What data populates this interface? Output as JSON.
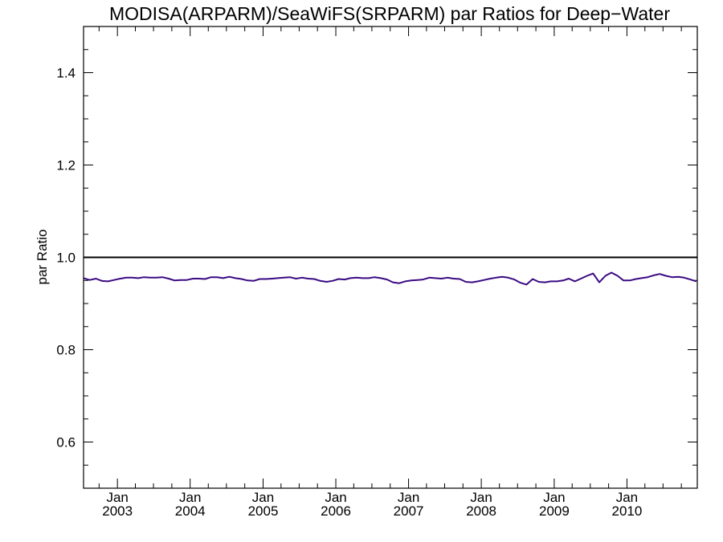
{
  "chart_data": {
    "type": "line",
    "title": "MODISA(ARPARM)/SeaWiFS(SRPARM)  par Ratios for Deep−Water",
    "xlabel": "",
    "ylabel": "par Ratio",
    "xlim": [
      "2002-07-15",
      "2010-12-20"
    ],
    "ylim": [
      0.5,
      1.5
    ],
    "grid": false,
    "legend": "none",
    "x_ticks": [
      {
        "month": "Jan",
        "year": "2003",
        "date": "2003-01-01"
      },
      {
        "month": "Jan",
        "year": "2004",
        "date": "2004-01-01"
      },
      {
        "month": "Jan",
        "year": "2005",
        "date": "2005-01-01"
      },
      {
        "month": "Jan",
        "year": "2006",
        "date": "2006-01-01"
      },
      {
        "month": "Jan",
        "year": "2007",
        "date": "2007-01-01"
      },
      {
        "month": "Jan",
        "year": "2008",
        "date": "2008-01-01"
      },
      {
        "month": "Jan",
        "year": "2009",
        "date": "2009-01-01"
      },
      {
        "month": "Jan",
        "year": "2010",
        "date": "2010-01-01"
      }
    ],
    "y_ticks": [
      "0.6",
      "0.8",
      "1.0",
      "1.2",
      "1.4"
    ],
    "y_tick_values": [
      0.6,
      0.8,
      1.0,
      1.2,
      1.4
    ],
    "reference_line": {
      "y": 1.0,
      "color": "#000000"
    },
    "series": [
      {
        "color": "#3a0a82",
        "x": [
          "2002-07-15",
          "2002-08-15",
          "2002-09-15",
          "2002-10-15",
          "2002-11-15",
          "2002-12-15",
          "2003-01-15",
          "2003-02-15",
          "2003-03-15",
          "2003-04-15",
          "2003-05-15",
          "2003-06-15",
          "2003-07-15",
          "2003-08-15",
          "2003-09-15",
          "2003-10-15",
          "2003-11-15",
          "2003-12-15",
          "2004-01-15",
          "2004-02-15",
          "2004-03-15",
          "2004-04-15",
          "2004-05-15",
          "2004-06-15",
          "2004-07-15",
          "2004-08-15",
          "2004-09-15",
          "2004-10-15",
          "2004-11-15",
          "2004-12-15",
          "2005-01-15",
          "2005-02-15",
          "2005-03-15",
          "2005-04-15",
          "2005-05-15",
          "2005-06-15",
          "2005-07-15",
          "2005-08-15",
          "2005-09-15",
          "2005-10-15",
          "2005-11-15",
          "2005-12-15",
          "2006-01-15",
          "2006-02-15",
          "2006-03-15",
          "2006-04-15",
          "2006-05-15",
          "2006-06-15",
          "2006-07-15",
          "2006-08-15",
          "2006-09-15",
          "2006-10-15",
          "2006-11-15",
          "2006-12-15",
          "2007-01-15",
          "2007-02-15",
          "2007-03-15",
          "2007-04-15",
          "2007-05-15",
          "2007-06-15",
          "2007-07-15",
          "2007-08-15",
          "2007-09-15",
          "2007-10-15",
          "2007-11-15",
          "2007-12-15",
          "2008-01-15",
          "2008-02-15",
          "2008-03-15",
          "2008-04-15",
          "2008-05-15",
          "2008-06-15",
          "2008-07-15",
          "2008-08-15",
          "2008-09-15",
          "2008-10-15",
          "2008-11-15",
          "2008-12-15",
          "2009-01-15",
          "2009-02-15",
          "2009-03-15",
          "2009-04-15",
          "2009-05-15",
          "2009-06-15",
          "2009-07-15",
          "2009-08-15",
          "2009-09-15",
          "2009-10-15",
          "2009-11-15",
          "2009-12-15",
          "2010-01-15",
          "2010-02-15",
          "2010-03-15",
          "2010-04-15",
          "2010-05-15",
          "2010-06-15",
          "2010-07-15",
          "2010-08-15",
          "2010-09-15",
          "2010-10-15",
          "2010-11-15",
          "2010-12-15"
        ],
        "y": [
          0.955,
          0.951,
          0.954,
          0.949,
          0.948,
          0.951,
          0.954,
          0.956,
          0.956,
          0.955,
          0.957,
          0.956,
          0.956,
          0.957,
          0.954,
          0.95,
          0.951,
          0.951,
          0.954,
          0.954,
          0.953,
          0.957,
          0.957,
          0.955,
          0.958,
          0.955,
          0.953,
          0.95,
          0.949,
          0.953,
          0.953,
          0.954,
          0.955,
          0.956,
          0.957,
          0.954,
          0.956,
          0.954,
          0.953,
          0.949,
          0.947,
          0.949,
          0.953,
          0.952,
          0.955,
          0.956,
          0.955,
          0.955,
          0.957,
          0.955,
          0.952,
          0.946,
          0.944,
          0.948,
          0.95,
          0.951,
          0.952,
          0.956,
          0.955,
          0.954,
          0.956,
          0.954,
          0.953,
          0.947,
          0.946,
          0.948,
          0.951,
          0.954,
          0.956,
          0.958,
          0.956,
          0.952,
          0.945,
          0.941,
          0.953,
          0.947,
          0.946,
          0.948,
          0.948,
          0.95,
          0.954,
          0.948,
          0.954,
          0.96,
          0.965,
          0.946,
          0.96,
          0.967,
          0.96,
          0.95,
          0.95,
          0.953,
          0.955,
          0.957,
          0.961,
          0.964,
          0.96,
          0.957,
          0.958,
          0.956,
          0.952,
          0.948
        ]
      }
    ]
  }
}
